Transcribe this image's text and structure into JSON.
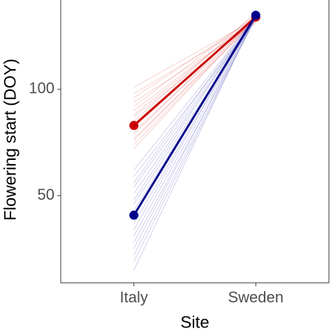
{
  "chart_data": {
    "type": "line",
    "x_label": "Site",
    "y_label": "Flowering start (DOY)",
    "categories": [
      "Italy",
      "Sweden"
    ],
    "ylim": [
      9,
      142
    ],
    "yticks": [
      50,
      100
    ],
    "series": [
      {
        "color": "#e06060",
        "alpha": 0.3,
        "line_width": 1,
        "values": [
          101,
          133
        ]
      },
      {
        "color": "#e06060",
        "alpha": 0.3,
        "line_width": 1,
        "values": [
          98,
          132
        ]
      },
      {
        "color": "#e06060",
        "alpha": 0.3,
        "line_width": 1,
        "values": [
          96,
          134
        ]
      },
      {
        "color": "#e06060",
        "alpha": 0.3,
        "line_width": 1,
        "values": [
          94,
          131
        ]
      },
      {
        "color": "#e06060",
        "alpha": 0.3,
        "line_width": 1,
        "values": [
          92,
          135
        ]
      },
      {
        "color": "#e06060",
        "alpha": 0.3,
        "line_width": 1,
        "values": [
          90,
          133
        ]
      },
      {
        "color": "#e06060",
        "alpha": 0.3,
        "line_width": 1,
        "values": [
          88,
          134
        ]
      },
      {
        "color": "#e06060",
        "alpha": 0.3,
        "line_width": 1,
        "values": [
          87,
          132
        ]
      },
      {
        "color": "#e06060",
        "alpha": 0.3,
        "line_width": 1,
        "values": [
          85,
          136
        ]
      },
      {
        "color": "#e06060",
        "alpha": 0.3,
        "line_width": 1,
        "values": [
          84,
          133
        ]
      },
      {
        "color": "#e06060",
        "alpha": 0.3,
        "line_width": 1,
        "values": [
          82,
          134
        ]
      },
      {
        "color": "#e06060",
        "alpha": 0.3,
        "line_width": 1,
        "values": [
          80,
          133
        ]
      },
      {
        "color": "#e06060",
        "alpha": 0.3,
        "line_width": 1,
        "values": [
          79,
          135
        ]
      },
      {
        "color": "#e06060",
        "alpha": 0.3,
        "line_width": 1,
        "values": [
          77,
          132
        ]
      },
      {
        "color": "#e06060",
        "alpha": 0.3,
        "line_width": 1,
        "values": [
          76,
          134
        ]
      },
      {
        "color": "#e06060",
        "alpha": 0.3,
        "line_width": 1,
        "values": [
          74,
          133
        ]
      },
      {
        "color": "#e06060",
        "alpha": 0.3,
        "line_width": 1,
        "values": [
          72,
          134
        ]
      },
      {
        "color": "#6060c0",
        "alpha": 0.3,
        "line_width": 1,
        "values": [
          62,
          134
        ]
      },
      {
        "color": "#6060c0",
        "alpha": 0.3,
        "line_width": 1,
        "values": [
          59,
          133
        ]
      },
      {
        "color": "#6060c0",
        "alpha": 0.3,
        "line_width": 1,
        "values": [
          56,
          135
        ]
      },
      {
        "color": "#6060c0",
        "alpha": 0.3,
        "line_width": 1,
        "values": [
          54,
          134
        ]
      },
      {
        "color": "#6060c0",
        "alpha": 0.3,
        "line_width": 1,
        "values": [
          51,
          134
        ]
      },
      {
        "color": "#6060c0",
        "alpha": 0.3,
        "line_width": 1,
        "values": [
          48,
          135
        ]
      },
      {
        "color": "#6060c0",
        "alpha": 0.3,
        "line_width": 1,
        "values": [
          46,
          133
        ]
      },
      {
        "color": "#6060c0",
        "alpha": 0.3,
        "line_width": 1,
        "values": [
          43,
          134
        ]
      },
      {
        "color": "#6060c0",
        "alpha": 0.3,
        "line_width": 1,
        "values": [
          40,
          135
        ]
      },
      {
        "color": "#6060c0",
        "alpha": 0.3,
        "line_width": 1,
        "values": [
          37,
          134
        ]
      },
      {
        "color": "#6060c0",
        "alpha": 0.3,
        "line_width": 1,
        "values": [
          34,
          135
        ]
      },
      {
        "color": "#6060c0",
        "alpha": 0.3,
        "line_width": 1,
        "values": [
          31,
          134
        ]
      },
      {
        "color": "#6060c0",
        "alpha": 0.3,
        "line_width": 1,
        "values": [
          28,
          133
        ]
      },
      {
        "color": "#6060c0",
        "alpha": 0.3,
        "line_width": 1,
        "values": [
          25,
          135
        ]
      },
      {
        "color": "#6060c0",
        "alpha": 0.3,
        "line_width": 1,
        "values": [
          22,
          134
        ]
      },
      {
        "color": "#6060c0",
        "alpha": 0.3,
        "line_width": 1,
        "values": [
          19,
          134
        ]
      },
      {
        "color": "#6060c0",
        "alpha": 0.3,
        "line_width": 1,
        "values": [
          15,
          135
        ]
      },
      {
        "color": "#cc0000",
        "alpha": 1,
        "line_width": 3,
        "points": true,
        "values": [
          83,
          134
        ]
      },
      {
        "color": "#00008b",
        "alpha": 1,
        "line_width": 3,
        "points": true,
        "values": [
          40.8,
          134.8
        ]
      }
    ]
  }
}
